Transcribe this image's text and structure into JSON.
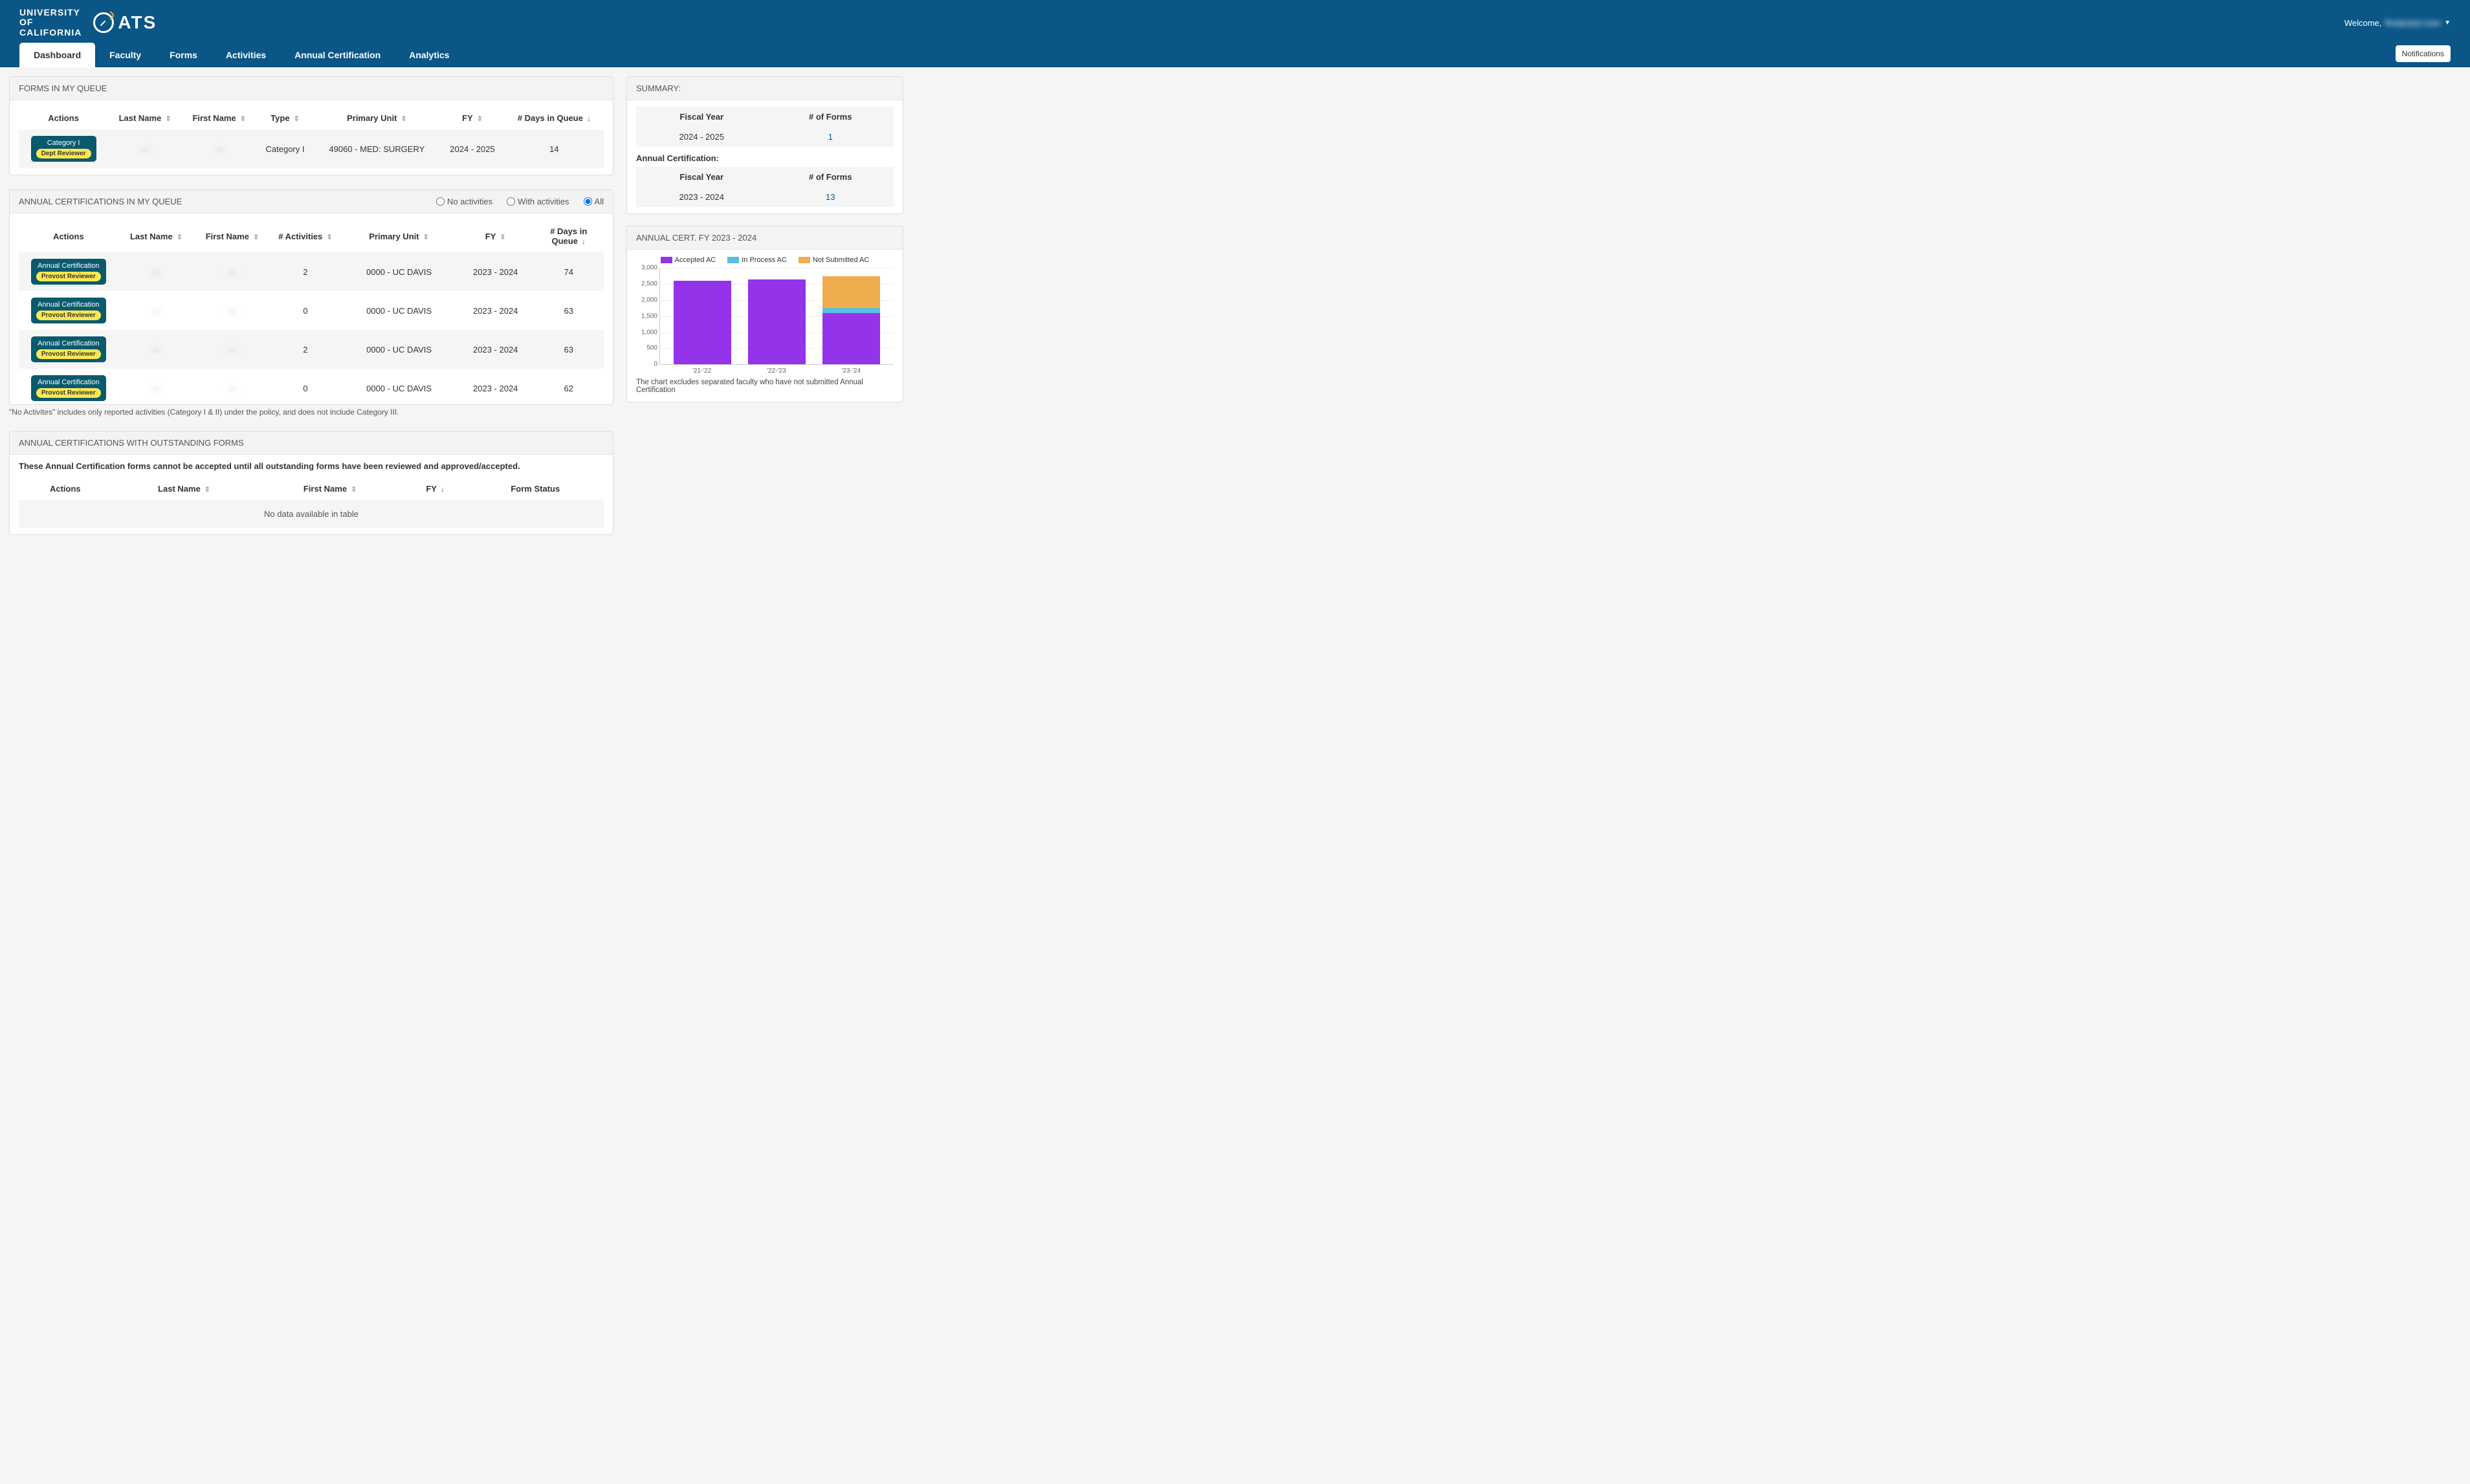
{
  "header": {
    "uc_logo_line1": "UNIVERSITY",
    "uc_logo_line2": "OF",
    "uc_logo_line3": "CALIFORNIA",
    "oats_text": "ATS",
    "welcome_label": "Welcome,",
    "welcome_user": "Redacted User",
    "notifications_label": "Notifications"
  },
  "tabs": [
    {
      "label": "Dashboard",
      "active": true
    },
    {
      "label": "Faculty",
      "active": false
    },
    {
      "label": "Forms",
      "active": false
    },
    {
      "label": "Activities",
      "active": false
    },
    {
      "label": "Annual Certification",
      "active": false
    },
    {
      "label": "Analytics",
      "active": false
    }
  ],
  "forms_queue": {
    "title": "FORMS IN MY QUEUE",
    "columns": [
      "Actions",
      "Last Name",
      "First Name",
      "Type",
      "Primary Unit",
      "FY",
      "# Days in Queue"
    ],
    "rows": [
      {
        "action_top": "Category I",
        "action_badge": "Dept Reviewer",
        "last": "—",
        "first": "—",
        "type": "Category I",
        "unit": "49060 - MED: SURGERY",
        "fy": "2024 - 2025",
        "days": "14"
      }
    ]
  },
  "cert_queue": {
    "title": "ANNUAL CERTIFICATIONS IN MY QUEUE",
    "filters": {
      "none": "No activities",
      "with": "With activities",
      "all": "All",
      "selected": "all"
    },
    "columns": [
      "Actions",
      "Last Name",
      "First Name",
      "# Activities",
      "Primary Unit",
      "FY",
      "# Days in Queue"
    ],
    "rows": [
      {
        "action_top": "Annual Certification",
        "action_badge": "Provost Reviewer",
        "last": "—",
        "first": "—",
        "activities": "2",
        "unit": "0000 - UC DAVIS",
        "fy": "2023 - 2024",
        "days": "74"
      },
      {
        "action_top": "Annual Certification",
        "action_badge": "Provost Reviewer",
        "last": "—",
        "first": "—",
        "activities": "0",
        "unit": "0000 - UC DAVIS",
        "fy": "2023 - 2024",
        "days": "63"
      },
      {
        "action_top": "Annual Certification",
        "action_badge": "Provost Reviewer",
        "last": "—",
        "first": "—",
        "activities": "2",
        "unit": "0000 - UC DAVIS",
        "fy": "2023 - 2024",
        "days": "63"
      },
      {
        "action_top": "Annual Certification",
        "action_badge": "Provost Reviewer",
        "last": "—",
        "first": "—",
        "activities": "0",
        "unit": "0000 - UC DAVIS",
        "fy": "2023 - 2024",
        "days": "62"
      }
    ],
    "footnote": "\"No Activites\" includes only reported activities (Category I & II) under the policy, and does not include Category III."
  },
  "outstanding": {
    "title": "ANNUAL CERTIFICATIONS WITH OUTSTANDING FORMS",
    "subtitle": "These Annual Certification forms cannot be accepted until all outstanding forms have been reviewed and approved/accepted.",
    "columns": [
      "Actions",
      "Last Name",
      "First Name",
      "FY",
      "Form Status"
    ],
    "no_data": "No data available in table"
  },
  "summary": {
    "title": "SUMMARY:",
    "headers": [
      "Fiscal Year",
      "# of Forms"
    ],
    "forms_rows": [
      {
        "fy": "2024 - 2025",
        "count": "1"
      }
    ],
    "ac_label": "Annual Certification:",
    "ac_rows": [
      {
        "fy": "2023 - 2024",
        "count": "13"
      }
    ]
  },
  "chart": {
    "title": "ANNUAL CERT. FY 2023 - 2024",
    "type": "stacked-bar",
    "legend": [
      {
        "label": "Accepted AC",
        "color": "#9333ea"
      },
      {
        "label": "In Process AC",
        "color": "#5bc0de"
      },
      {
        "label": "Not Submitted AC",
        "color": "#f0ad4e"
      }
    ],
    "y_max": 3000,
    "y_ticks": [
      0,
      500,
      1000,
      1500,
      2000,
      2500,
      3000
    ],
    "y_tick_labels": [
      "0",
      "500",
      "1,000",
      "1,500",
      "2,000",
      "2,500",
      "3,000"
    ],
    "categories": [
      "'21-'22",
      "'22-'23",
      "'23-'24"
    ],
    "series": [
      {
        "accepted": 2600,
        "inprocess": 0,
        "notsubmitted": 0
      },
      {
        "accepted": 2650,
        "inprocess": 0,
        "notsubmitted": 0
      },
      {
        "accepted": 1600,
        "inprocess": 150,
        "notsubmitted": 1000
      }
    ],
    "background_color": "#ffffff",
    "grid_color": "#eeeeee",
    "note": "The chart excludes separated faculty who have not submitted Annual Certification"
  }
}
